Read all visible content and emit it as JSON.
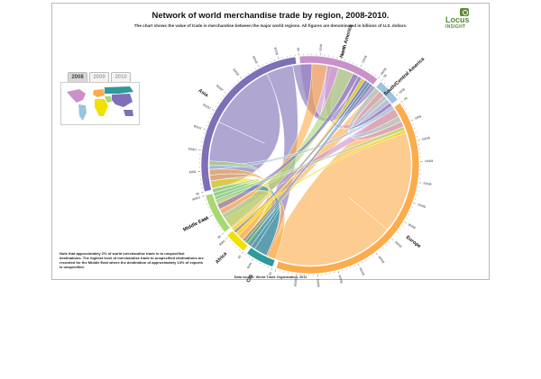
{
  "title": "Network of world merchandise trade by region, 2008-2010.",
  "subtitle": "The chart shows the value of trade in merchandise between the major world regions. All figures are denominated in billions of U.S. dollars.",
  "logo": {
    "name": "Locus",
    "tagline": "INSIGHT"
  },
  "tabs": [
    {
      "label": "2008",
      "active": true
    },
    {
      "label": "2009",
      "active": false
    },
    {
      "label": "2010",
      "active": false
    }
  ],
  "note": "Note that approximately 2% of world merchandise trade is to unspecified destinations. The highest level of merchandise trade to unspecified destinations are recorded for the Middle East where the destination of approximately 13% of exports is unspecified.",
  "source": "Data source: World Trade Organization, 2011",
  "chart_data": {
    "type": "chord",
    "year": "2008",
    "unit": "billions of U.S. dollars",
    "regions": [
      {
        "name": "North America",
        "total": 2000,
        "color": "#c991c9"
      },
      {
        "name": "South/Central America",
        "total": 600,
        "color": "#9ec4dc"
      },
      {
        "name": "Europe",
        "total": 6500,
        "color": "#fbac4c"
      },
      {
        "name": "CIS",
        "total": 700,
        "color": "#2e9a9a"
      },
      {
        "name": "Africa",
        "total": 550,
        "color": "#f2e100"
      },
      {
        "name": "Middle East",
        "total": 1000,
        "color": "#a7d874"
      },
      {
        "name": "Asia",
        "total": 4400,
        "color": "#7e6fb7"
      }
    ],
    "tick_step": 500,
    "tick_labels": [
      "0$",
      "500$",
      "1000$",
      "1500$",
      "2000$",
      "2500$",
      "3000$",
      "3500$",
      "4000$",
      "4500$",
      "5000$",
      "5500$",
      "6000$"
    ],
    "flows": [
      {
        "from": "Europe",
        "to": "Europe",
        "value": 3400
      },
      {
        "from": "Asia",
        "to": "Asia",
        "value": 1800
      },
      {
        "from": "North America",
        "to": "North America",
        "value": 800
      },
      {
        "from": "Asia",
        "to": "Europe",
        "value": 700
      },
      {
        "from": "Asia",
        "to": "North America",
        "value": 500
      },
      {
        "from": "Europe",
        "to": "North America",
        "value": 400
      },
      {
        "from": "Europe",
        "to": "Asia",
        "value": 400
      },
      {
        "from": "North America",
        "to": "Asia",
        "value": 300
      },
      {
        "from": "North America",
        "to": "Europe",
        "value": 250
      },
      {
        "from": "Europe",
        "to": "CIS",
        "value": 250
      },
      {
        "from": "Middle East",
        "to": "Asia",
        "value": 400
      },
      {
        "from": "CIS",
        "to": "Europe",
        "value": 350
      },
      {
        "from": "Africa",
        "to": "Europe",
        "value": 200
      },
      {
        "from": "Europe",
        "to": "Middle East",
        "value": 150
      },
      {
        "from": "Europe",
        "to": "Africa",
        "value": 150
      },
      {
        "from": "Asia",
        "to": "Middle East",
        "value": 150
      },
      {
        "from": "South/Central America",
        "to": "North America",
        "value": 150
      },
      {
        "from": "North America",
        "to": "South/Central America",
        "value": 150
      },
      {
        "from": "South/Central America",
        "to": "South/Central America",
        "value": 120
      },
      {
        "from": "Asia",
        "to": "South/Central America",
        "value": 100
      },
      {
        "from": "South/Central America",
        "to": "Europe",
        "value": 100
      },
      {
        "from": "Middle East",
        "to": "Europe",
        "value": 120
      },
      {
        "from": "Africa",
        "to": "Asia",
        "value": 100
      },
      {
        "from": "Asia",
        "to": "Africa",
        "value": 80
      },
      {
        "from": "CIS",
        "to": "CIS",
        "value": 120
      },
      {
        "from": "Middle East",
        "to": "North America",
        "value": 90
      },
      {
        "from": "Africa",
        "to": "North America",
        "value": 80
      },
      {
        "from": "CIS",
        "to": "Asia",
        "value": 80
      },
      {
        "from": "Asia",
        "to": "CIS",
        "value": 70
      },
      {
        "from": "Middle East",
        "to": "Middle East",
        "value": 100
      }
    ]
  }
}
